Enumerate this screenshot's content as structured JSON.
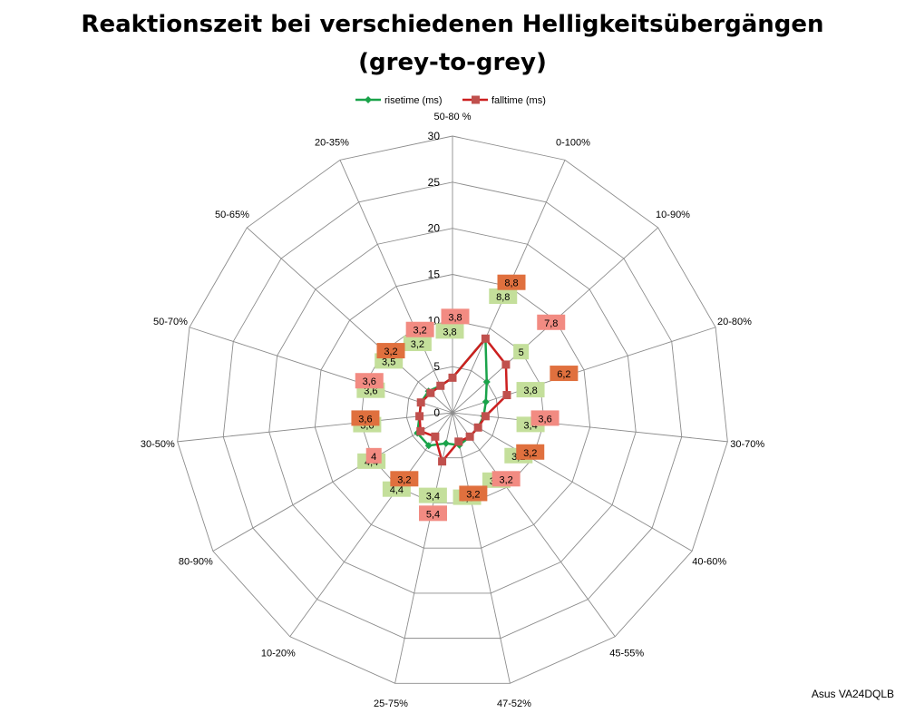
{
  "title_line1": "Reaktionszeit bei verschiedenen Helligkeitsübergängen",
  "title_line2": "(grey-to-grey)",
  "watermark": "Asus VA24DQLB",
  "colors": {
    "rise": "#1aa34a",
    "fall": "#cc1f1f",
    "fall_marker": "#c0504d",
    "rise_label_bg": "#c4df9b",
    "fall_label_bg_light": "#f28b82",
    "fall_label_bg_dark": "#e0703e",
    "grid": "#8c8c8c"
  },
  "chart_data": {
    "type": "radar",
    "title": "Reaktionszeit bei verschiedenen Helligkeitsübergängen (grey-to-grey)",
    "categories": [
      "50-80 %",
      "0-100%",
      "10-90%",
      "20-80%",
      "30-70%",
      "40-60%",
      "45-55%",
      "47-52%",
      "25-75%",
      "10-20%",
      "80-90%",
      "30-50%",
      "50-70%",
      "50-65%",
      "20-35%"
    ],
    "radial_ticks": [
      "0",
      "5",
      "10",
      "15",
      "20",
      "25",
      "30"
    ],
    "rlim": [
      0,
      30
    ],
    "legend_position": "top",
    "series": [
      {
        "name": "risetime (ms)",
        "values": [
          3.8,
          8.8,
          5,
          3.8,
          3.4,
          3.2,
          3.2,
          3.6,
          3.4,
          4.4,
          4.4,
          3.6,
          3.6,
          3.5,
          3.2
        ],
        "labels": [
          "3,8",
          "8,8",
          "5",
          "3,8",
          "3,4",
          "3,2",
          "3,2",
          "3,6",
          "3,4",
          "4,4",
          "4,4",
          "3,6",
          "3,6",
          "3,5",
          "3,2"
        ]
      },
      {
        "name": "falltime (ms)",
        "values": [
          3.8,
          8.8,
          7.8,
          6.2,
          3.6,
          3.2,
          3.2,
          3.2,
          5.4,
          3.2,
          4,
          3.6,
          3.6,
          3.2,
          3.2
        ],
        "labels": [
          "3,8",
          "8,8",
          "7,8",
          "6,2",
          "3,6",
          "3,2",
          "3,2",
          "3,2",
          "5,4",
          "3,2",
          "4",
          "3,6",
          "3,6",
          "3,2",
          "3,2"
        ]
      }
    ]
  }
}
